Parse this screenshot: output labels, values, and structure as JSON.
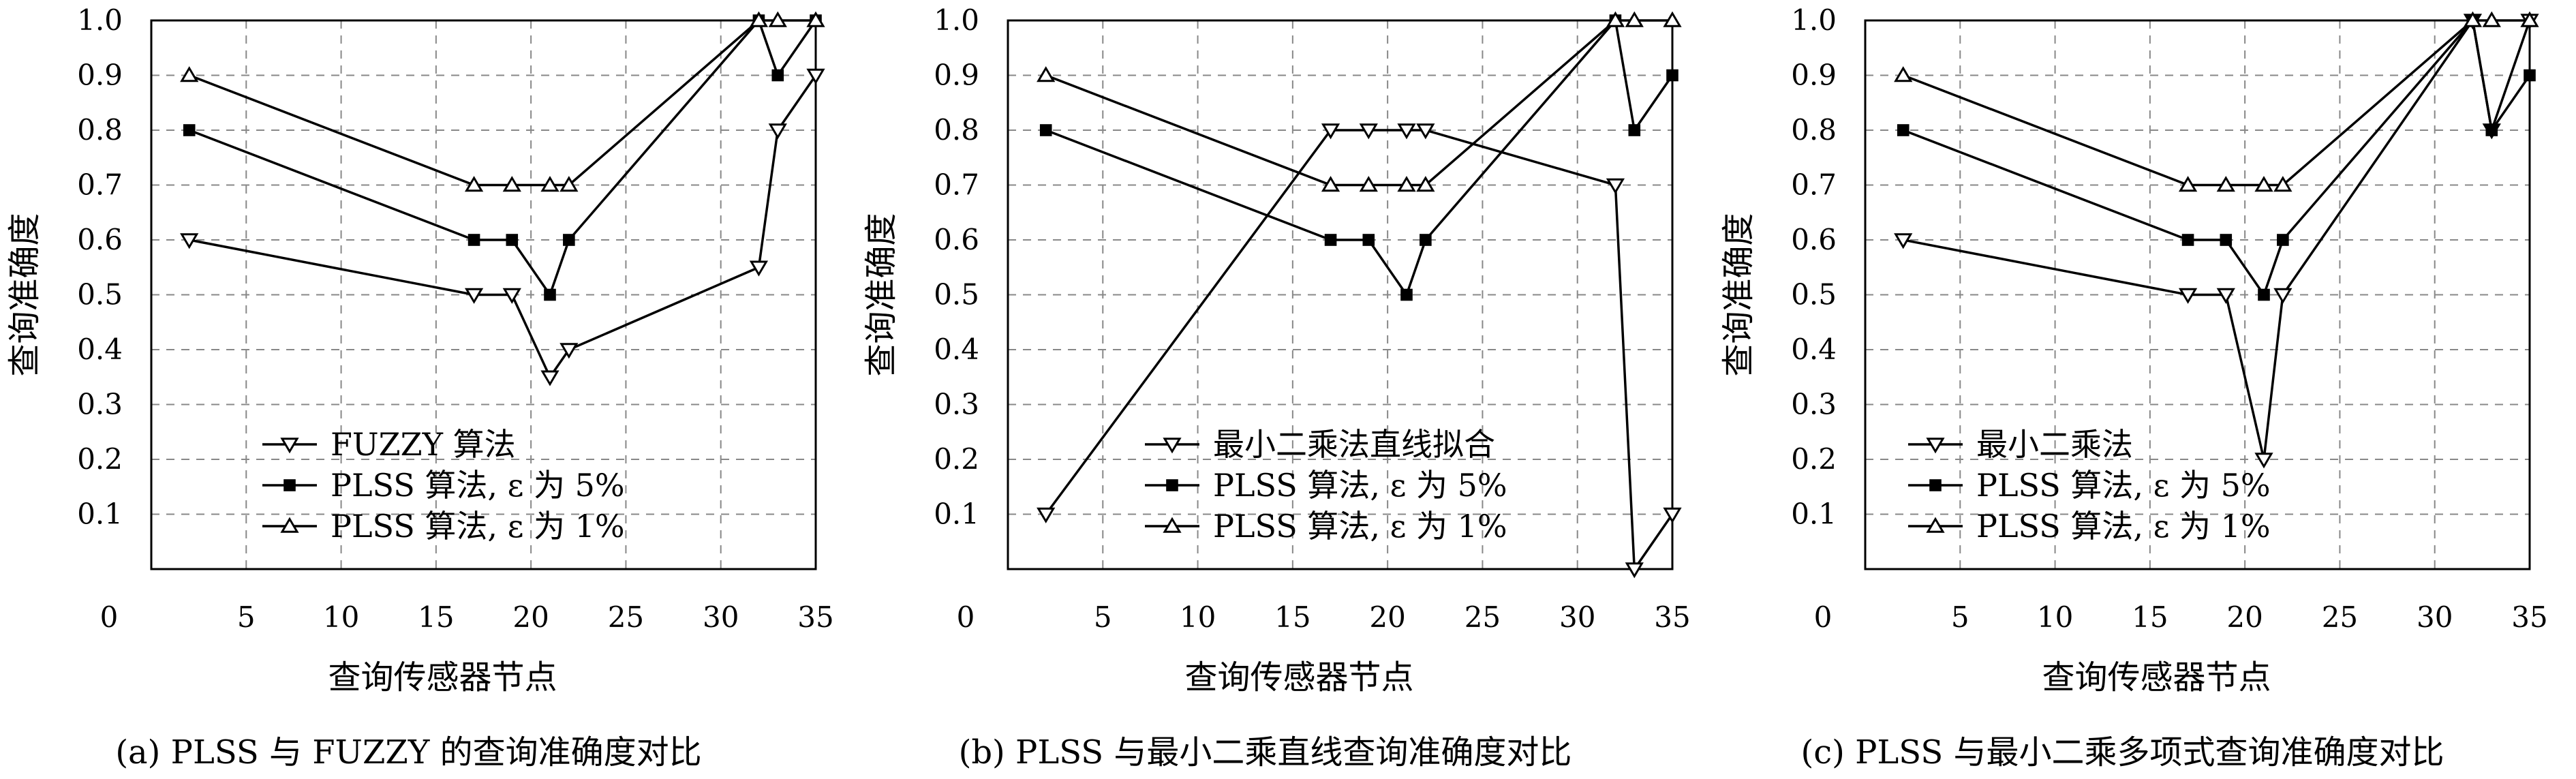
{
  "chart_data": [
    {
      "type": "line",
      "caption": "(a) PLSS 与 FUZZY 的查询准确度对比",
      "xlabel": "查询传感器节点",
      "ylabel": "查询准确度",
      "xlim": [
        0,
        35
      ],
      "ylim": [
        0,
        1.0
      ],
      "xticks": [
        0,
        5,
        10,
        15,
        20,
        25,
        30,
        35
      ],
      "yticks": [
        0.1,
        0.2,
        0.3,
        0.4,
        0.5,
        0.6,
        0.7,
        0.8,
        0.9,
        1.0
      ],
      "grid": true,
      "legend_position": "bottom-left",
      "series": [
        {
          "name": "FUZZY 算法",
          "marker": "triangle-down",
          "x": [
            2,
            17,
            19,
            21,
            22,
            32,
            33,
            35
          ],
          "y": [
            0.6,
            0.5,
            0.5,
            0.35,
            0.4,
            0.55,
            0.8,
            0.9
          ]
        },
        {
          "name": "PLSS 算法, ε 为 5%",
          "marker": "square",
          "x": [
            2,
            17,
            19,
            21,
            22,
            32,
            33,
            35
          ],
          "y": [
            0.8,
            0.6,
            0.6,
            0.5,
            0.6,
            1.0,
            0.9,
            1.0
          ]
        },
        {
          "name": "PLSS 算法, ε 为 1%",
          "marker": "triangle-up",
          "x": [
            2,
            17,
            19,
            21,
            22,
            32,
            33,
            35
          ],
          "y": [
            0.9,
            0.7,
            0.7,
            0.7,
            0.7,
            1.0,
            1.0,
            1.0
          ]
        }
      ]
    },
    {
      "type": "line",
      "caption": "(b) PLSS 与最小二乘直线查询准确度对比",
      "xlabel": "查询传感器节点",
      "ylabel": "查询准确度",
      "xlim": [
        0,
        35
      ],
      "ylim": [
        0,
        1.0
      ],
      "xticks": [
        0,
        5,
        10,
        15,
        20,
        25,
        30,
        35
      ],
      "yticks": [
        0.1,
        0.2,
        0.3,
        0.4,
        0.5,
        0.6,
        0.7,
        0.8,
        0.9,
        1.0
      ],
      "grid": true,
      "legend_position": "bottom-center",
      "series": [
        {
          "name": "最小二乘法直线拟合",
          "marker": "triangle-down",
          "x": [
            2,
            17,
            19,
            21,
            22,
            32,
            33,
            35
          ],
          "y": [
            0.1,
            0.8,
            0.8,
            0.8,
            0.8,
            0.7,
            0.0,
            0.1
          ]
        },
        {
          "name": "PLSS 算法, ε 为 5%",
          "marker": "square",
          "x": [
            2,
            17,
            19,
            21,
            22,
            32,
            33,
            35
          ],
          "y": [
            0.8,
            0.6,
            0.6,
            0.5,
            0.6,
            1.0,
            0.8,
            0.9
          ]
        },
        {
          "name": "PLSS 算法, ε 为 1%",
          "marker": "triangle-up",
          "x": [
            2,
            17,
            19,
            21,
            22,
            32,
            33,
            35
          ],
          "y": [
            0.9,
            0.7,
            0.7,
            0.7,
            0.7,
            1.0,
            1.0,
            1.0
          ]
        }
      ]
    },
    {
      "type": "line",
      "caption": "(c) PLSS 与最小二乘多项式查询准确度对比",
      "xlabel": "查询传感器节点",
      "ylabel": "查询准确度",
      "xlim": [
        0,
        35
      ],
      "ylim": [
        0,
        1.0
      ],
      "xticks": [
        0,
        5,
        10,
        15,
        20,
        25,
        30,
        35
      ],
      "yticks": [
        0.1,
        0.2,
        0.3,
        0.4,
        0.5,
        0.6,
        0.7,
        0.8,
        0.9,
        1.0
      ],
      "grid": true,
      "legend_position": "bottom-left",
      "series": [
        {
          "name": "最小二乘法",
          "marker": "triangle-down",
          "x": [
            2,
            17,
            19,
            21,
            22,
            32,
            33,
            35
          ],
          "y": [
            0.6,
            0.5,
            0.5,
            0.2,
            0.5,
            1.0,
            0.8,
            1.0
          ]
        },
        {
          "name": "PLSS 算法, ε 为 5%",
          "marker": "square",
          "x": [
            2,
            17,
            19,
            21,
            22,
            32,
            33,
            35
          ],
          "y": [
            0.8,
            0.6,
            0.6,
            0.5,
            0.6,
            1.0,
            0.8,
            0.9
          ]
        },
        {
          "name": "PLSS 算法, ε 为 1%",
          "marker": "triangle-up",
          "x": [
            2,
            17,
            19,
            21,
            22,
            32,
            33,
            35
          ],
          "y": [
            0.9,
            0.7,
            0.7,
            0.7,
            0.7,
            1.0,
            1.0,
            1.0
          ]
        }
      ]
    }
  ]
}
